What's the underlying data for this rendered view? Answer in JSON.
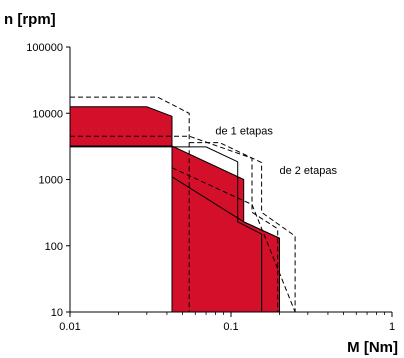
{
  "chart_data": {
    "type": "area",
    "x_scale": "log",
    "y_scale": "log",
    "xlabel": "M [Nm]",
    "ylabel": "n [rpm]",
    "xlim": [
      0.01,
      1
    ],
    "ylim": [
      10,
      100000
    ],
    "x_ticks": [
      {
        "value": 0.01,
        "label": "0.01"
      },
      {
        "value": 0.1,
        "label": "0.1"
      },
      {
        "value": 1,
        "label": "1"
      }
    ],
    "y_ticks": [
      {
        "value": 10,
        "label": "10"
      },
      {
        "value": 100,
        "label": "100"
      },
      {
        "value": 1000,
        "label": "1000"
      },
      {
        "value": 10000,
        "label": "10000"
      },
      {
        "value": 100000,
        "label": "100000"
      }
    ],
    "fill_color": "#d40f2a",
    "series": [
      {
        "style": "fill",
        "points": [
          [
            0.01,
            10
          ],
          [
            0.01,
            12500
          ],
          [
            0.03,
            12500
          ],
          [
            0.043,
            9000
          ],
          [
            0.043,
            10
          ],
          [
            0.155,
            10
          ],
          [
            0.155,
            150
          ],
          [
            0.155,
            10
          ],
          [
            0.2,
            10
          ],
          [
            0.2,
            130
          ],
          [
            0.12,
            230
          ],
          [
            0.12,
            1000
          ],
          [
            0.043,
            3200
          ],
          [
            0.01,
            3200
          ]
        ]
      },
      {
        "style": "solid",
        "points": [
          [
            0.01,
            3100
          ],
          [
            0.043,
            3100
          ],
          [
            0.043,
            1100
          ],
          [
            0.12,
            230
          ],
          [
            0.2,
            130
          ],
          [
            0.2,
            10
          ]
        ]
      },
      {
        "style": "solid",
        "points": [
          [
            0.043,
            3100
          ],
          [
            0.07,
            3100
          ],
          [
            0.11,
            1850
          ],
          [
            0.11,
            230
          ],
          [
            0.155,
            150
          ],
          [
            0.155,
            10
          ]
        ]
      },
      {
        "style": "dashed",
        "points": [
          [
            0.01,
            17500
          ],
          [
            0.035,
            17500
          ],
          [
            0.055,
            10000
          ],
          [
            0.055,
            10
          ],
          [
            0.25,
            10
          ]
        ]
      },
      {
        "style": "dashed",
        "points": [
          [
            0.01,
            4500
          ],
          [
            0.055,
            4500
          ],
          [
            0.135,
            2100
          ],
          [
            0.135,
            320
          ],
          [
            0.195,
            180
          ],
          [
            0.195,
            10
          ]
        ]
      },
      {
        "style": "dashed",
        "points": [
          [
            0.055,
            3600
          ],
          [
            0.085,
            3600
          ],
          [
            0.155,
            1800
          ],
          [
            0.155,
            320
          ],
          [
            0.25,
            140
          ],
          [
            0.25,
            10
          ]
        ]
      },
      {
        "style": "dashed",
        "points": [
          [
            0.043,
            1500
          ],
          [
            0.135,
            420
          ],
          [
            0.25,
            10
          ],
          [
            0.3,
            10
          ]
        ]
      }
    ],
    "annotations": [
      {
        "text": "de 1 etapas",
        "x": 0.08,
        "y": 5500
      },
      {
        "text": "de 2 etapas",
        "x": 0.2,
        "y": 1400
      }
    ]
  }
}
